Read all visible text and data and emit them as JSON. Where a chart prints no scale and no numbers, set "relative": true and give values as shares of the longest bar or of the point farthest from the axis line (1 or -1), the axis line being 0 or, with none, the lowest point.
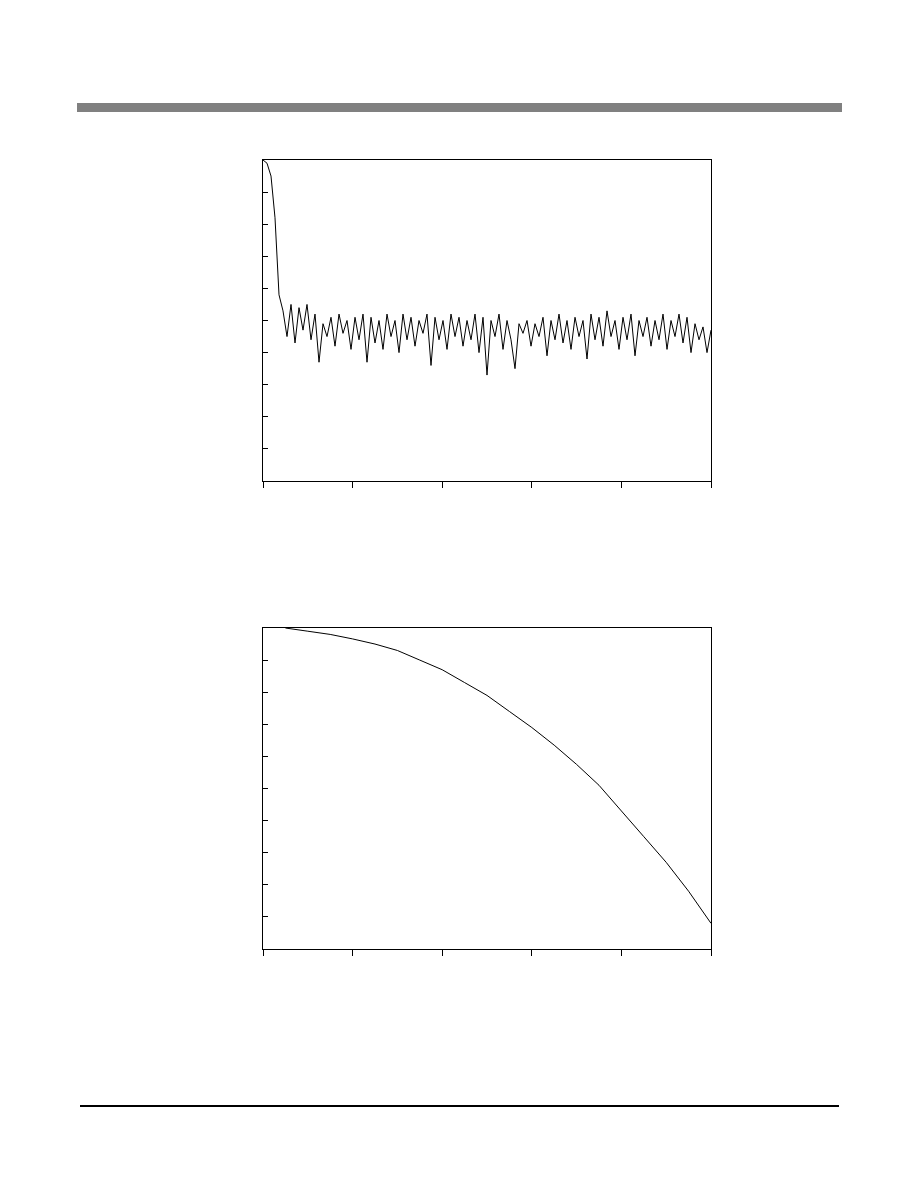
{
  "chart_data": [
    {
      "type": "line",
      "relative": true,
      "color": "#000000",
      "categories": [
        null,
        null,
        null,
        null,
        null,
        null,
        null,
        null,
        null,
        null,
        null,
        null,
        null,
        null,
        null,
        null,
        null,
        null,
        null,
        null,
        null,
        null,
        null,
        null,
        null,
        null,
        null,
        null,
        null,
        null,
        null,
        null,
        null,
        null,
        null,
        null,
        null,
        null,
        null,
        null,
        null,
        null,
        null,
        null,
        null,
        null,
        null,
        null,
        null,
        null,
        null,
        null,
        null,
        null,
        null,
        null,
        null,
        null,
        null,
        null,
        null,
        null,
        null,
        null,
        null,
        null,
        null,
        null,
        null,
        null,
        null,
        null,
        null,
        null,
        null,
        null,
        null,
        null,
        null,
        null,
        null,
        null,
        null,
        null,
        null,
        null,
        null,
        null,
        null,
        null,
        null,
        null,
        null,
        null,
        null,
        null,
        null,
        null,
        null,
        null,
        null,
        null,
        null,
        null,
        null,
        null,
        null,
        null,
        null,
        null,
        null,
        null,
        null
      ],
      "values": [
        1.0,
        0.99,
        0.95,
        0.82,
        0.58,
        0.53,
        0.45,
        0.55,
        0.43,
        0.54,
        0.47,
        0.55,
        0.44,
        0.52,
        0.37,
        0.49,
        0.45,
        0.51,
        0.42,
        0.52,
        0.46,
        0.5,
        0.41,
        0.51,
        0.44,
        0.52,
        0.37,
        0.51,
        0.43,
        0.5,
        0.41,
        0.52,
        0.45,
        0.5,
        0.4,
        0.52,
        0.44,
        0.51,
        0.42,
        0.5,
        0.46,
        0.52,
        0.36,
        0.51,
        0.44,
        0.5,
        0.41,
        0.52,
        0.45,
        0.51,
        0.42,
        0.5,
        0.44,
        0.52,
        0.4,
        0.51,
        0.33,
        0.5,
        0.45,
        0.52,
        0.41,
        0.5,
        0.44,
        0.35,
        0.49,
        0.46,
        0.5,
        0.42,
        0.49,
        0.45,
        0.51,
        0.39,
        0.5,
        0.44,
        0.52,
        0.43,
        0.5,
        0.41,
        0.51,
        0.45,
        0.5,
        0.38,
        0.52,
        0.44,
        0.51,
        0.42,
        0.53,
        0.45,
        0.5,
        0.41,
        0.51,
        0.44,
        0.52,
        0.39,
        0.5,
        0.45,
        0.51,
        0.42,
        0.5,
        0.44,
        0.52,
        0.41,
        0.5,
        0.45,
        0.52,
        0.43,
        0.51,
        0.4,
        0.49,
        0.44,
        0.48,
        0.4,
        0.47
      ]
    },
    {
      "type": "line",
      "relative": true,
      "color": "#000000",
      "categories": [
        null,
        null,
        null,
        null,
        null,
        null,
        null,
        null,
        null,
        null,
        null,
        null,
        null,
        null,
        null,
        null,
        null,
        null,
        null,
        null,
        null
      ],
      "values": [
        null,
        1.0,
        0.99,
        0.98,
        0.966,
        0.95,
        0.93,
        0.9,
        0.87,
        0.83,
        0.79,
        0.74,
        0.69,
        0.635,
        0.575,
        0.51,
        0.43,
        0.35,
        0.27,
        0.18,
        0.08
      ]
    }
  ]
}
